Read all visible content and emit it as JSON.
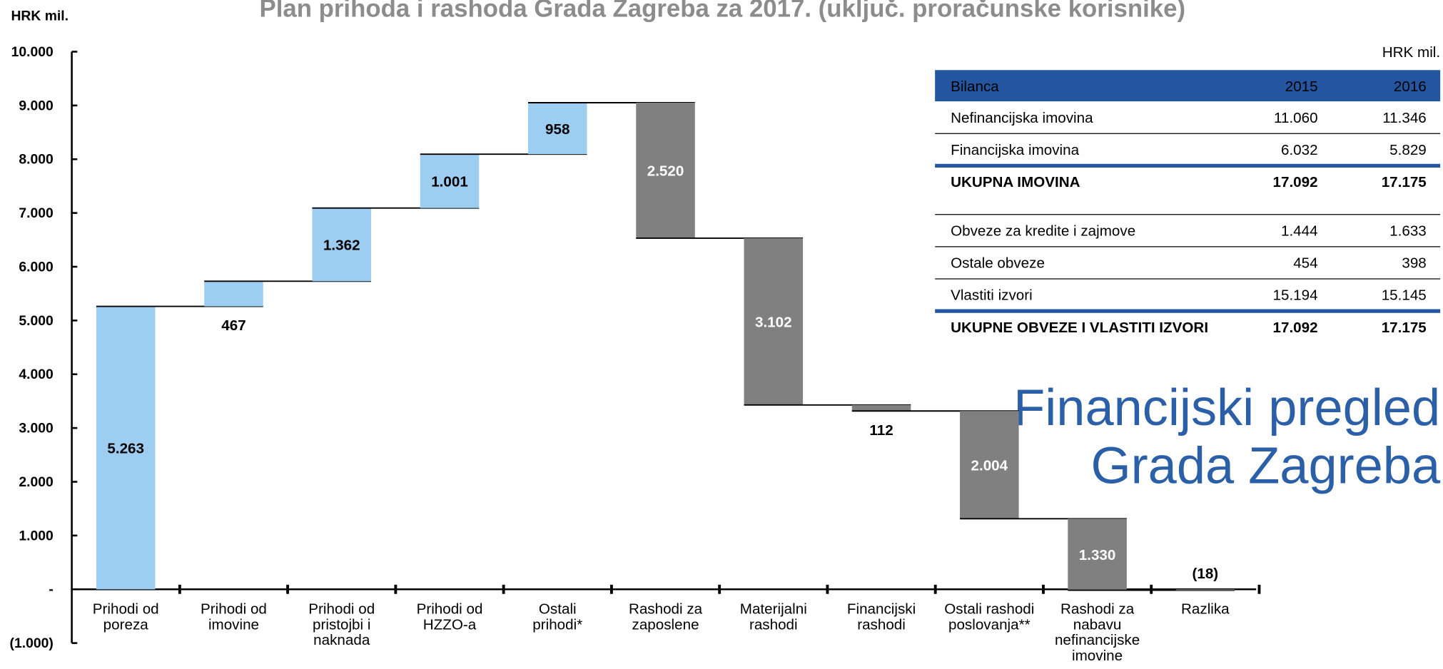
{
  "chart_data": {
    "type": "waterfall",
    "title": "Plan prihoda i rashoda Grada Zagreba za 2017. (uključ. proračunske korisnike)",
    "y_label": "HRK mil.",
    "categories": [
      "Prihodi od\nporeza",
      "Prihodi od\nimovine",
      "Prihodi od\npristojbi i\nnaknada",
      "Prihodi od\nHZZO-a",
      "Ostali\nprihodi*",
      "Rashodi za\nzaposlene",
      "Materijalni\nrashodi",
      "Financijski\nrashodi",
      "Ostali rashodi\nposlovanja**",
      "Rashodi za\nnabavu\nnefinancijske\nimovine",
      "Razlika"
    ],
    "values": [
      5263,
      467,
      1362,
      1001,
      958,
      -2520,
      -3102,
      -112,
      -2004,
      -1330,
      -18
    ],
    "value_labels": [
      "5.263",
      "467",
      "1.362",
      "1.001",
      "958",
      "2.520",
      "3.102",
      "112",
      "2.004",
      "1.330",
      "(18)"
    ],
    "increase_color": "#9ecdf2",
    "decrease_color": "#808080",
    "last_is_total": true,
    "ylim": [
      -1000,
      10000
    ],
    "yticks": [
      {
        "value": -1000,
        "label": "(1.000)"
      },
      {
        "value": 0,
        "label": "-"
      },
      {
        "value": 1000,
        "label": "1.000"
      },
      {
        "value": 2000,
        "label": "2.000"
      },
      {
        "value": 3000,
        "label": "3.000"
      },
      {
        "value": 4000,
        "label": "4.000"
      },
      {
        "value": 5000,
        "label": "5.000"
      },
      {
        "value": 6000,
        "label": "6.000"
      },
      {
        "value": 7000,
        "label": "7.000"
      },
      {
        "value": 8000,
        "label": "8.000"
      },
      {
        "value": 9000,
        "label": "9.000"
      },
      {
        "value": 10000,
        "label": "10.000"
      }
    ]
  },
  "table": {
    "unit": "HRK mil.",
    "header": [
      "Bilanca",
      "2015",
      "2016"
    ],
    "rows": [
      [
        "Nefinancijska imovina",
        "11.060",
        "11.346"
      ],
      [
        "Financijska imovina",
        "6.032",
        "5.829"
      ],
      [
        "UKUPNA IMOVINA",
        "17.092",
        "17.175"
      ],
      [
        "Obveze za kredite i zajmove",
        "1.444",
        "1.633"
      ],
      [
        "Ostale obveze",
        "454",
        "398"
      ],
      [
        "Vlastiti izvori",
        "15.194",
        "15.145"
      ],
      [
        "UKUPNE OBVEZE I VLASTITI IZVORI",
        "17.092",
        "17.175"
      ]
    ]
  },
  "heading": [
    "Financijski pregled",
    "Grada Zagreba"
  ]
}
